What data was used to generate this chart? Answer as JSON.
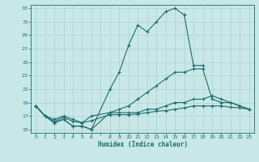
{
  "xlabel": "Humidex (Indice chaleur)",
  "background_color": "#c8e8e8",
  "grid_color": "#b0d0d0",
  "line_color": "#1e6b6b",
  "xlim": [
    -0.5,
    23.5
  ],
  "ylim": [
    14.5,
    33.5
  ],
  "yticks": [
    15,
    17,
    19,
    21,
    23,
    25,
    27,
    29,
    31,
    33
  ],
  "xtick_labels": [
    "0",
    "1",
    "2",
    "3",
    "4",
    "5",
    "6",
    "",
    "8",
    "9",
    "10",
    "11",
    "12",
    "13",
    "14",
    "15",
    "16",
    "17",
    "18",
    "19",
    "20",
    "21",
    "22",
    "23"
  ],
  "xtick_positions": [
    0,
    1,
    2,
    3,
    4,
    5,
    6,
    7,
    8,
    9,
    10,
    11,
    12,
    13,
    14,
    15,
    16,
    17,
    18,
    19,
    20,
    21,
    22,
    23
  ],
  "lines": [
    {
      "x": [
        0,
        1,
        2,
        3,
        4,
        5,
        6,
        8,
        9,
        10,
        11,
        12,
        13,
        14,
        15,
        16,
        17,
        18
      ],
      "y": [
        18.5,
        17.0,
        16.0,
        16.5,
        15.5,
        15.5,
        15.0,
        21.0,
        23.5,
        27.5,
        30.5,
        29.5,
        31.0,
        32.5,
        33.0,
        32.0,
        24.5,
        24.5
      ]
    },
    {
      "x": [
        0,
        1,
        2,
        3,
        4,
        5,
        6,
        8,
        9,
        10,
        11,
        12,
        13,
        14,
        15,
        16,
        17,
        18,
        19,
        20,
        21,
        22,
        23
      ],
      "y": [
        18.5,
        17.0,
        16.0,
        16.5,
        15.5,
        15.5,
        15.0,
        17.5,
        18.0,
        18.5,
        19.5,
        20.5,
        21.5,
        22.5,
        23.5,
        23.5,
        24.0,
        24.0,
        19.5,
        19.0,
        19.0,
        18.5,
        18.0
      ]
    },
    {
      "x": [
        0,
        1,
        2,
        3,
        4,
        5,
        6,
        8,
        9,
        10,
        11,
        12,
        13,
        14,
        15,
        16,
        17,
        18,
        19,
        20,
        21,
        22,
        23
      ],
      "y": [
        18.5,
        17.0,
        16.5,
        17.0,
        16.5,
        16.0,
        17.0,
        17.5,
        17.5,
        17.5,
        17.5,
        18.0,
        18.0,
        18.5,
        19.0,
        19.0,
        19.5,
        19.5,
        20.0,
        19.5,
        19.0,
        18.5,
        18.0
      ]
    },
    {
      "x": [
        0,
        1,
        2,
        3,
        4,
        5,
        6,
        8,
        9,
        10,
        11,
        12,
        13,
        14,
        15,
        16,
        17,
        18,
        19,
        20,
        21,
        22,
        23
      ],
      "y": [
        18.5,
        17.0,
        16.2,
        16.8,
        16.2,
        16.0,
        16.3,
        17.2,
        17.2,
        17.2,
        17.3,
        17.5,
        17.7,
        17.8,
        18.0,
        18.2,
        18.5,
        18.5,
        18.5,
        18.5,
        18.3,
        18.2,
        18.0
      ]
    }
  ]
}
